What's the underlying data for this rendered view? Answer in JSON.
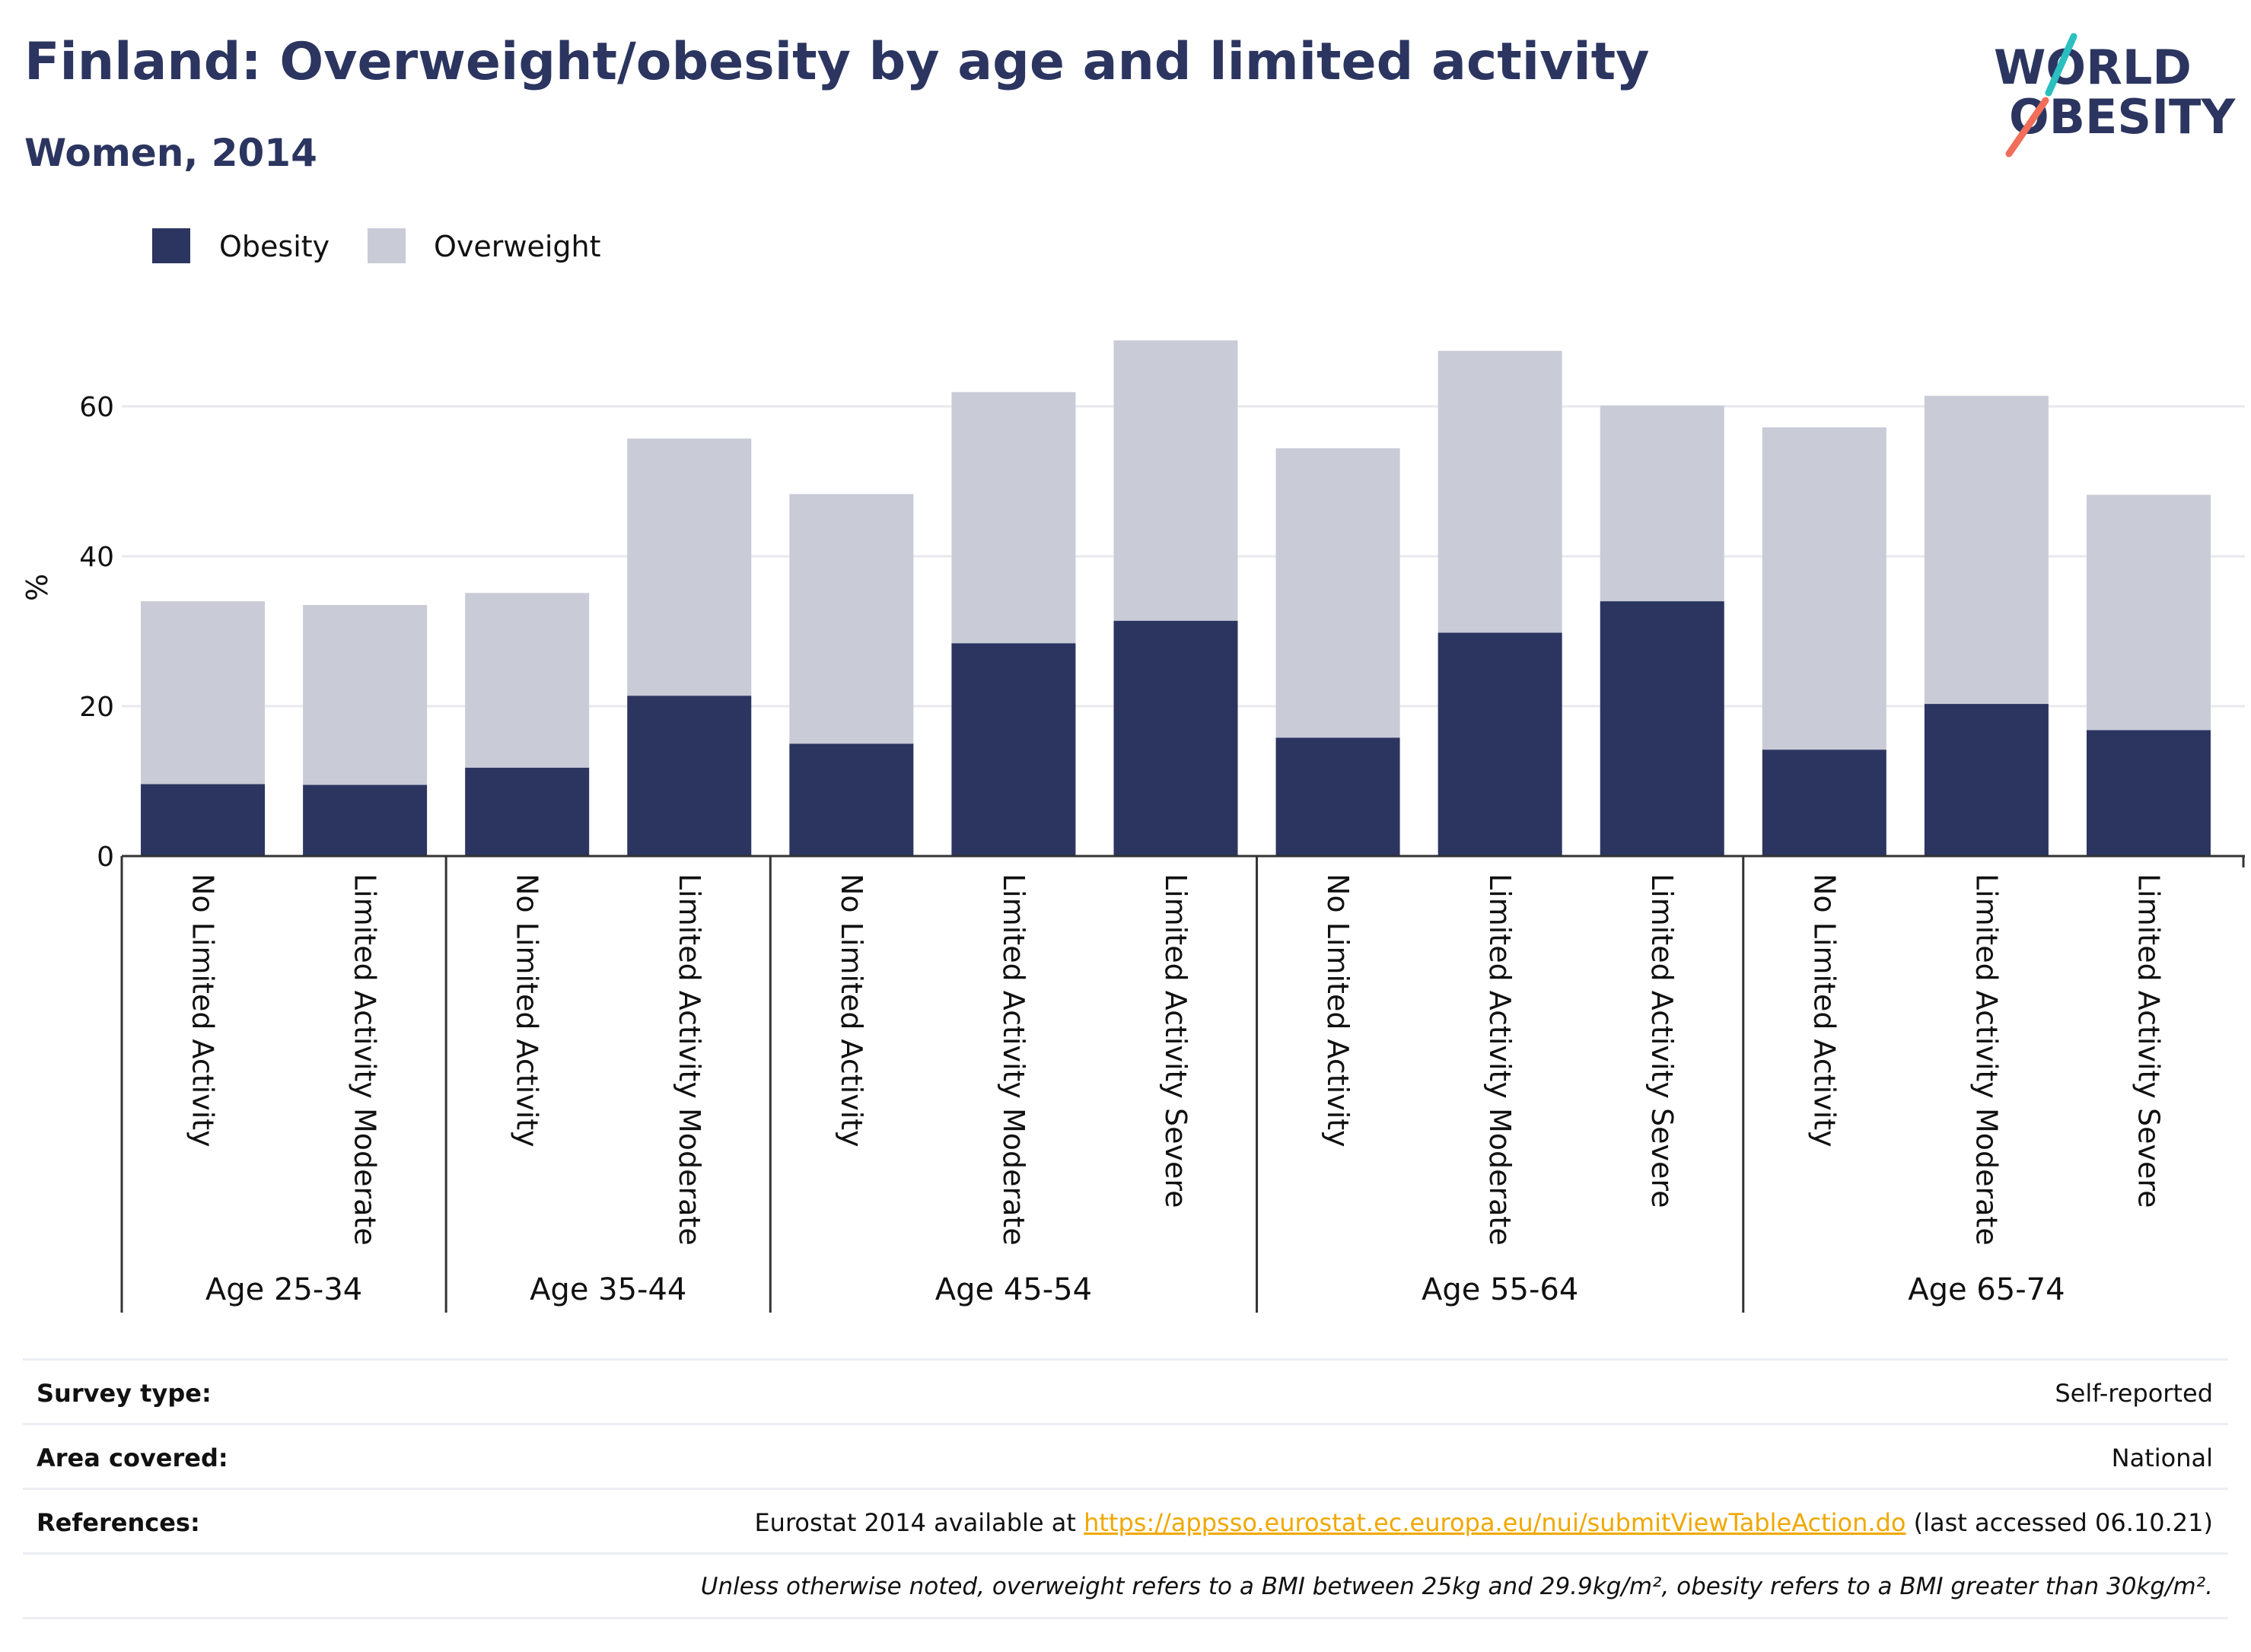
{
  "header": {
    "title": "Finland: Overweight/obesity by age and limited activity",
    "subtitle": "Women, 2014"
  },
  "logo": {
    "line1": "WORLD",
    "line2": "OBESITY"
  },
  "colors": {
    "obesity": "#2b3560",
    "overweight": "#c9cbd7",
    "accent_teal": "#2bbfbf",
    "accent_coral": "#f06e5a"
  },
  "chart_data": {
    "type": "bar",
    "stacked": true,
    "ylabel": "%",
    "ylim": [
      0,
      70
    ],
    "yticks": [
      0,
      20,
      40,
      60
    ],
    "grid": true,
    "legend_position": "top-left",
    "series": [
      {
        "name": "Obesity",
        "values": [
          9.6,
          9.5,
          11.8,
          21.4,
          15.0,
          28.4,
          31.4,
          15.8,
          29.8,
          34.0,
          14.2,
          20.3,
          16.8
        ]
      },
      {
        "name": "Overweight",
        "values": [
          24.4,
          24.0,
          23.3,
          34.3,
          33.3,
          33.5,
          37.4,
          38.6,
          37.6,
          26.1,
          43.0,
          41.1,
          31.4
        ]
      }
    ],
    "categories": [
      "No Limited Activity",
      "Limited Activity Moderate",
      "No Limited Activity",
      "Limited Activity Moderate",
      "No Limited Activity",
      "Limited Activity Moderate",
      "Limited Activity Severe",
      "No Limited Activity",
      "Limited Activity Moderate",
      "Limited Activity Severe",
      "No Limited Activity",
      "Limited Activity Moderate",
      "Limited Activity Severe"
    ],
    "groups": [
      {
        "label": "Age 25-34",
        "count": 2
      },
      {
        "label": "Age 35-44",
        "count": 2
      },
      {
        "label": "Age 45-54",
        "count": 3
      },
      {
        "label": "Age 55-64",
        "count": 3
      },
      {
        "label": "Age 65-74",
        "count": 3
      }
    ]
  },
  "info": {
    "survey_label": "Survey type:",
    "survey_value": "Self-reported",
    "area_label": "Area covered:",
    "area_value": "National",
    "references_label": "References:",
    "references_prefix": "Eurostat 2014 available at ",
    "references_link": "https://appsso.eurostat.ec.europa.eu/nui/submitViewTableAction.do",
    "references_suffix": " (last accessed 06.10.21)",
    "note": "Unless otherwise noted, overweight refers to a BMI between 25kg and 29.9kg/m², obesity refers to a BMI greater than 30kg/m²."
  }
}
